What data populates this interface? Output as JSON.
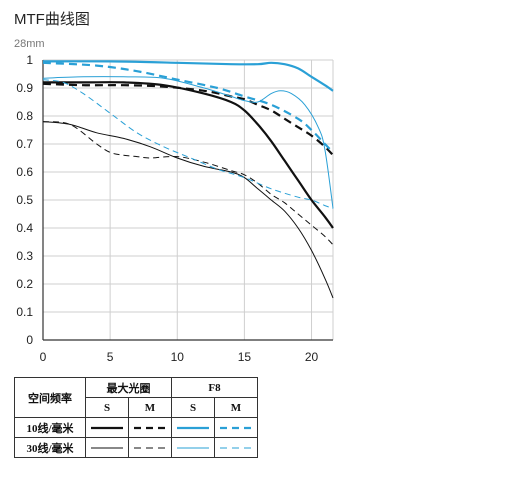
{
  "page": {
    "title": "MTF曲线图",
    "subtitle": "28mm"
  },
  "chart_data": {
    "type": "line",
    "title": "MTF曲线图",
    "subtitle": "28mm",
    "xlim": [
      0,
      21.6
    ],
    "ylim": [
      0,
      1
    ],
    "x_ticks": [
      "0",
      "5",
      "10",
      "15",
      "20"
    ],
    "y_ticks": [
      "0",
      "0.1",
      "0.2",
      "0.3",
      "0.4",
      "0.5",
      "0.6",
      "0.7",
      "0.8",
      "0.9",
      "1"
    ],
    "grid": true,
    "colors": {
      "black": "#111111",
      "blue": "#2aa0d6"
    },
    "series": [
      {
        "name": "最大光圈 10线/毫米 S",
        "color": "#111111",
        "dash": false,
        "width": 2.2,
        "points": [
          [
            0,
            0.92
          ],
          [
            3,
            0.92
          ],
          [
            6,
            0.92
          ],
          [
            9,
            0.91
          ],
          [
            12,
            0.88
          ],
          [
            14,
            0.85
          ],
          [
            15,
            0.82
          ],
          [
            16,
            0.77
          ],
          [
            17,
            0.71
          ],
          [
            18,
            0.64
          ],
          [
            19,
            0.57
          ],
          [
            20,
            0.5
          ],
          [
            21,
            0.44
          ],
          [
            21.6,
            0.4
          ]
        ]
      },
      {
        "name": "最大光圈 10线/毫米 M",
        "color": "#111111",
        "dash": true,
        "width": 2.2,
        "points": [
          [
            0,
            0.915
          ],
          [
            3,
            0.91
          ],
          [
            6,
            0.91
          ],
          [
            9,
            0.905
          ],
          [
            12,
            0.89
          ],
          [
            14,
            0.87
          ],
          [
            15,
            0.86
          ],
          [
            16,
            0.84
          ],
          [
            17,
            0.82
          ],
          [
            18,
            0.79
          ],
          [
            19,
            0.76
          ],
          [
            20,
            0.73
          ],
          [
            21,
            0.69
          ],
          [
            21.6,
            0.66
          ]
        ]
      },
      {
        "name": "最大光圈 30线/毫米 S",
        "color": "#111111",
        "dash": false,
        "width": 1,
        "points": [
          [
            0,
            0.78
          ],
          [
            2,
            0.77
          ],
          [
            4,
            0.74
          ],
          [
            6,
            0.72
          ],
          [
            8,
            0.69
          ],
          [
            10,
            0.65
          ],
          [
            12,
            0.62
          ],
          [
            14,
            0.6
          ],
          [
            15,
            0.58
          ],
          [
            16,
            0.54
          ],
          [
            17,
            0.5
          ],
          [
            18,
            0.46
          ],
          [
            19,
            0.4
          ],
          [
            20,
            0.32
          ],
          [
            21,
            0.22
          ],
          [
            21.6,
            0.15
          ]
        ]
      },
      {
        "name": "最大光圈 30线/毫米 M",
        "color": "#111111",
        "dash": true,
        "width": 1,
        "points": [
          [
            0,
            0.78
          ],
          [
            2,
            0.77
          ],
          [
            4,
            0.7
          ],
          [
            5,
            0.67
          ],
          [
            6,
            0.66
          ],
          [
            7,
            0.655
          ],
          [
            8,
            0.65
          ],
          [
            10,
            0.655
          ],
          [
            12,
            0.635
          ],
          [
            14,
            0.605
          ],
          [
            15,
            0.59
          ],
          [
            16,
            0.56
          ],
          [
            17,
            0.52
          ],
          [
            18,
            0.49
          ],
          [
            19,
            0.45
          ],
          [
            20,
            0.41
          ],
          [
            21,
            0.37
          ],
          [
            21.6,
            0.34
          ]
        ]
      },
      {
        "name": "F8 10线/毫米 S",
        "color": "#2aa0d6",
        "dash": false,
        "width": 2.2,
        "points": [
          [
            0,
            0.995
          ],
          [
            5,
            0.995
          ],
          [
            10,
            0.99
          ],
          [
            14,
            0.985
          ],
          [
            16,
            0.985
          ],
          [
            17,
            0.99
          ],
          [
            18,
            0.985
          ],
          [
            19,
            0.97
          ],
          [
            20,
            0.94
          ],
          [
            21,
            0.91
          ],
          [
            21.6,
            0.89
          ]
        ]
      },
      {
        "name": "F8 10线/毫米 M",
        "color": "#2aa0d6",
        "dash": true,
        "width": 2.2,
        "points": [
          [
            0,
            0.99
          ],
          [
            4,
            0.98
          ],
          [
            7,
            0.96
          ],
          [
            10,
            0.93
          ],
          [
            13,
            0.9
          ],
          [
            15,
            0.87
          ],
          [
            17,
            0.84
          ],
          [
            19,
            0.79
          ],
          [
            20,
            0.75
          ],
          [
            21,
            0.7
          ],
          [
            21.6,
            0.67
          ]
        ]
      },
      {
        "name": "F8 30线/毫米 S",
        "color": "#2aa0d6",
        "dash": false,
        "width": 1,
        "points": [
          [
            0,
            0.935
          ],
          [
            3,
            0.94
          ],
          [
            6,
            0.94
          ],
          [
            9,
            0.935
          ],
          [
            12,
            0.9
          ],
          [
            14,
            0.87
          ],
          [
            15,
            0.855
          ],
          [
            16,
            0.85
          ],
          [
            17,
            0.88
          ],
          [
            17.7,
            0.89
          ],
          [
            18.5,
            0.88
          ],
          [
            19.5,
            0.84
          ],
          [
            20.5,
            0.76
          ],
          [
            21,
            0.68
          ],
          [
            21.6,
            0.47
          ]
        ]
      },
      {
        "name": "F8 30线/毫米 M",
        "color": "#2aa0d6",
        "dash": true,
        "width": 1,
        "points": [
          [
            0,
            0.93
          ],
          [
            1.5,
            0.92
          ],
          [
            3,
            0.88
          ],
          [
            5,
            0.81
          ],
          [
            7,
            0.74
          ],
          [
            9,
            0.69
          ],
          [
            11,
            0.65
          ],
          [
            13,
            0.61
          ],
          [
            15,
            0.58
          ],
          [
            17,
            0.54
          ],
          [
            19,
            0.51
          ],
          [
            20,
            0.5
          ],
          [
            21,
            0.48
          ],
          [
            21.6,
            0.47
          ]
        ]
      }
    ]
  },
  "legend": {
    "row_header": "空间频率",
    "groups": [
      "最大光圈",
      "F8"
    ],
    "columns": [
      "S",
      "M",
      "S",
      "M"
    ],
    "rows": [
      "10线/毫米",
      "30线/毫米"
    ]
  }
}
